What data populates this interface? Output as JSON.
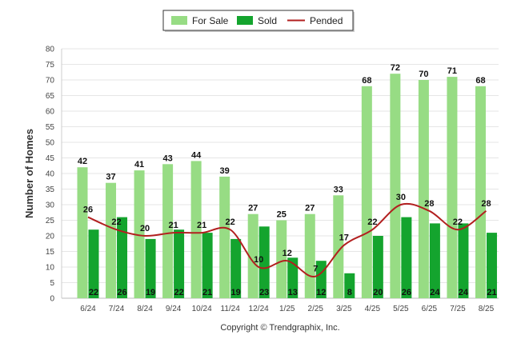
{
  "chart_data": {
    "type": "bar",
    "categories": [
      "6/24",
      "7/24",
      "8/24",
      "9/24",
      "10/24",
      "11/24",
      "12/24",
      "1/25",
      "2/25",
      "3/25",
      "4/25",
      "5/25",
      "6/25",
      "7/25",
      "8/25"
    ],
    "series": [
      {
        "name": "For Sale",
        "type": "bar",
        "color": "#97dc84",
        "values": [
          42,
          37,
          41,
          43,
          44,
          39,
          27,
          25,
          27,
          33,
          68,
          72,
          70,
          71,
          68
        ]
      },
      {
        "name": "Sold",
        "type": "bar",
        "color": "#14a42e",
        "values": [
          22,
          26,
          19,
          22,
          21,
          19,
          23,
          13,
          12,
          8,
          20,
          26,
          24,
          24,
          21
        ]
      },
      {
        "name": "Pended",
        "type": "line",
        "color": "#b21f1f",
        "values": [
          26,
          22,
          20,
          21,
          21,
          22,
          10,
          12,
          7,
          17,
          22,
          30,
          28,
          22,
          28
        ]
      }
    ],
    "ylabel": "Number of Homes",
    "xlabel": "",
    "ylim": [
      0,
      80
    ],
    "yticks": [
      0,
      5,
      10,
      15,
      20,
      25,
      30,
      35,
      40,
      45,
      50,
      55,
      60,
      65,
      70,
      75,
      80
    ],
    "grid": true,
    "legend_position": "top-center"
  },
  "footer": {
    "copyright": "Copyright © Trendgraphix, Inc."
  }
}
